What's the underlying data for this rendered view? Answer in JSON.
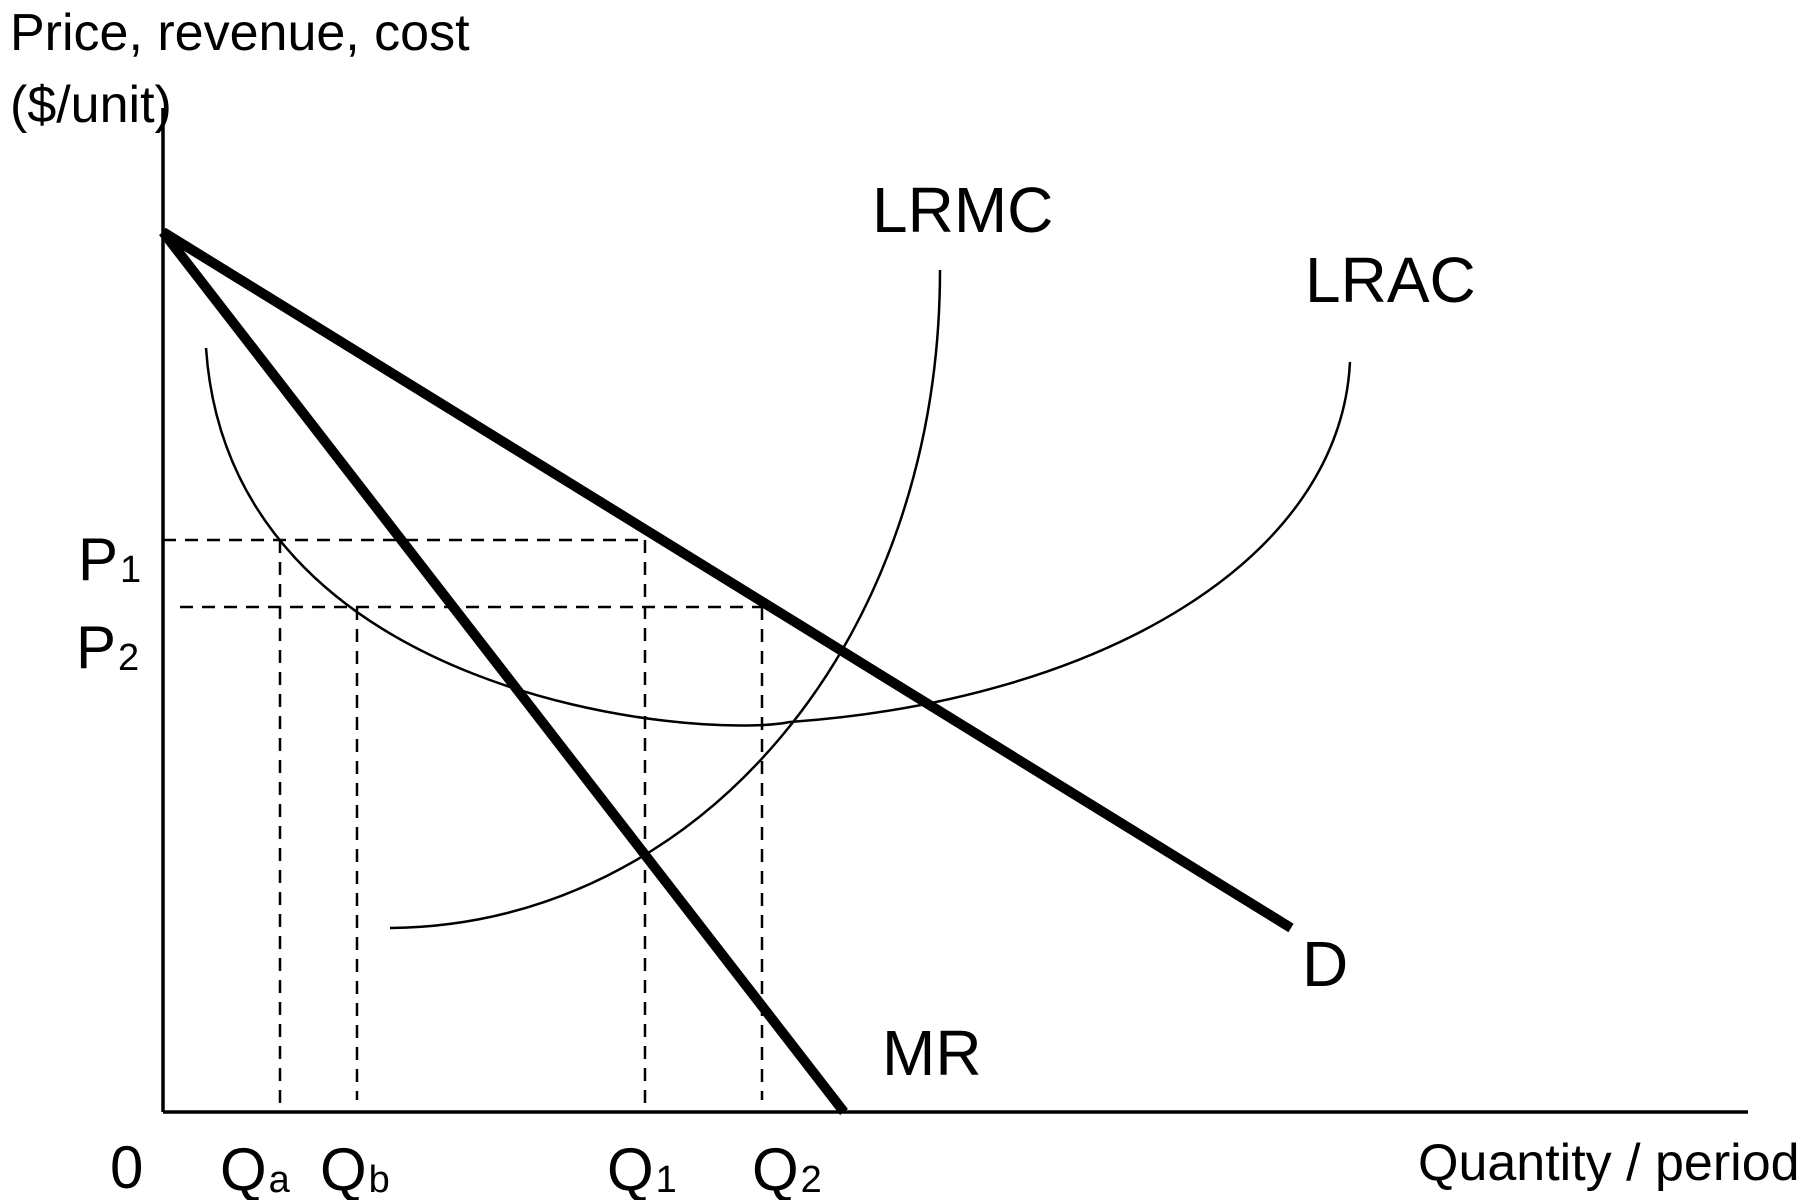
{
  "axes": {
    "y_title_line1": "Price, revenue, cost",
    "y_title_line2": "($/unit)",
    "x_title": "Quantity / period",
    "origin": "0"
  },
  "curves": {
    "lrmc": "LRMC",
    "lrac": "LRAC",
    "demand": "D",
    "mr": "MR"
  },
  "price_levels": [
    {
      "main": "P",
      "sub": "1"
    },
    {
      "main": "P",
      "sub": "2"
    }
  ],
  "quantity_levels": [
    {
      "main": "Q",
      "sub": "a"
    },
    {
      "main": "Q",
      "sub": "b"
    },
    {
      "main": "Q",
      "sub": "1"
    },
    {
      "main": "Q",
      "sub": "2"
    }
  ]
}
